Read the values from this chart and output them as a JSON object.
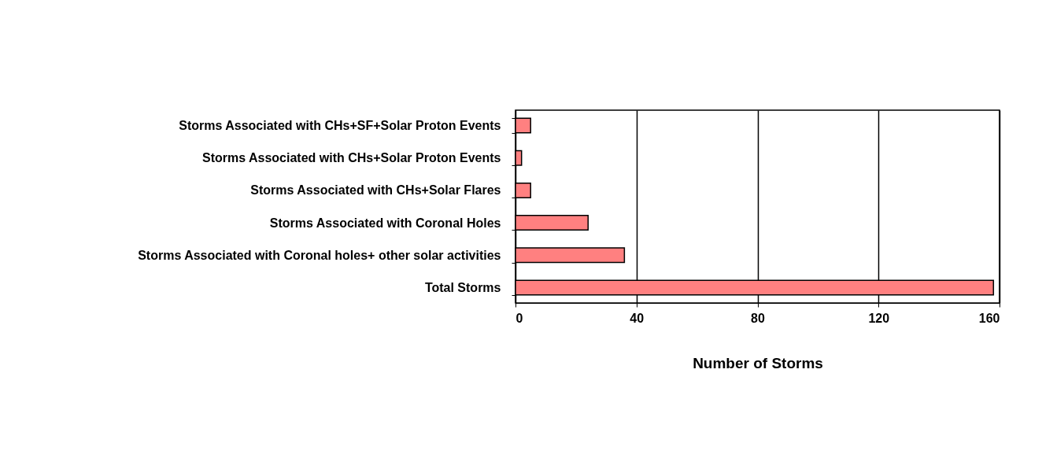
{
  "chart_data": {
    "type": "bar",
    "orientation": "horizontal",
    "xlabel": "Number of Storms",
    "categories": [
      "Storms Associated with CHs+SF+Solar Proton Events",
      "Storms Associated with CHs+Solar Proton Events",
      "Storms Associated with CHs+Solar Flares",
      "Storms Associated with Coronal Holes",
      "Storms Associated with Coronal holes+ other solar activities",
      "Total Storms"
    ],
    "values": [
      5,
      2,
      5,
      24,
      36,
      158
    ],
    "color": "#ff8080",
    "xlim": [
      0,
      160
    ],
    "xticks": [
      0,
      40,
      80,
      120,
      160
    ],
    "grid": "x"
  }
}
